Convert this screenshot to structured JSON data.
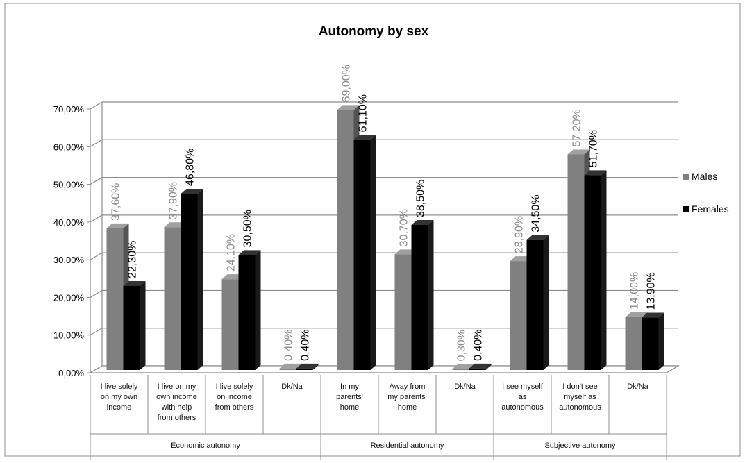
{
  "chart_data": {
    "type": "bar",
    "title": "Autonomy by sex",
    "yticks": [
      "0,00%",
      "10,00%",
      "20,00%",
      "30,00%",
      "40,00%",
      "50,00%",
      "60,00%",
      "70,00%"
    ],
    "ylim": [
      0,
      70
    ],
    "grid": true,
    "legend_position": "right",
    "categories": [
      [
        "I live solely",
        "on my own",
        "income"
      ],
      [
        "I live on my",
        "own income",
        "with help",
        "from others"
      ],
      [
        "I live solely",
        "on income",
        "from others"
      ],
      [
        "Dk/Na"
      ],
      [
        "In my",
        "parents'",
        "home"
      ],
      [
        "Away from",
        "my parents'",
        "home"
      ],
      [
        "Dk/Na"
      ],
      [
        "I see myself",
        "as",
        "autonomous"
      ],
      [
        "I don't see",
        "myself as",
        "autonomous"
      ],
      [
        "Dk/Na"
      ]
    ],
    "groups": [
      {
        "name": "Economic autonomy",
        "start": 0,
        "end": 3
      },
      {
        "name": "Residential autonomy",
        "start": 4,
        "end": 6
      },
      {
        "name": "Subjective autonomy",
        "start": 7,
        "end": 9
      }
    ],
    "series": [
      {
        "name": "Males",
        "color": "#808080",
        "values": [
          37.6,
          37.9,
          24.1,
          0.4,
          69.0,
          30.7,
          0.3,
          28.9,
          57.2,
          14.0
        ],
        "labels": [
          "37,60%",
          "37,90%",
          "24,10%",
          "0,40%",
          "69,00%",
          "30,70%",
          "0,30%",
          "28,90%",
          "57,20%",
          "14,00%"
        ]
      },
      {
        "name": "Females",
        "color": "#000000",
        "values": [
          22.3,
          46.8,
          30.5,
          0.4,
          61.1,
          38.5,
          0.4,
          34.5,
          51.7,
          13.9
        ],
        "labels": [
          "22,30%",
          "46,80%",
          "30,50%",
          "0,40%",
          "61,10%",
          "38,50%",
          "0,40%",
          "34,50%",
          "51,70%",
          "13,90%"
        ]
      }
    ]
  }
}
